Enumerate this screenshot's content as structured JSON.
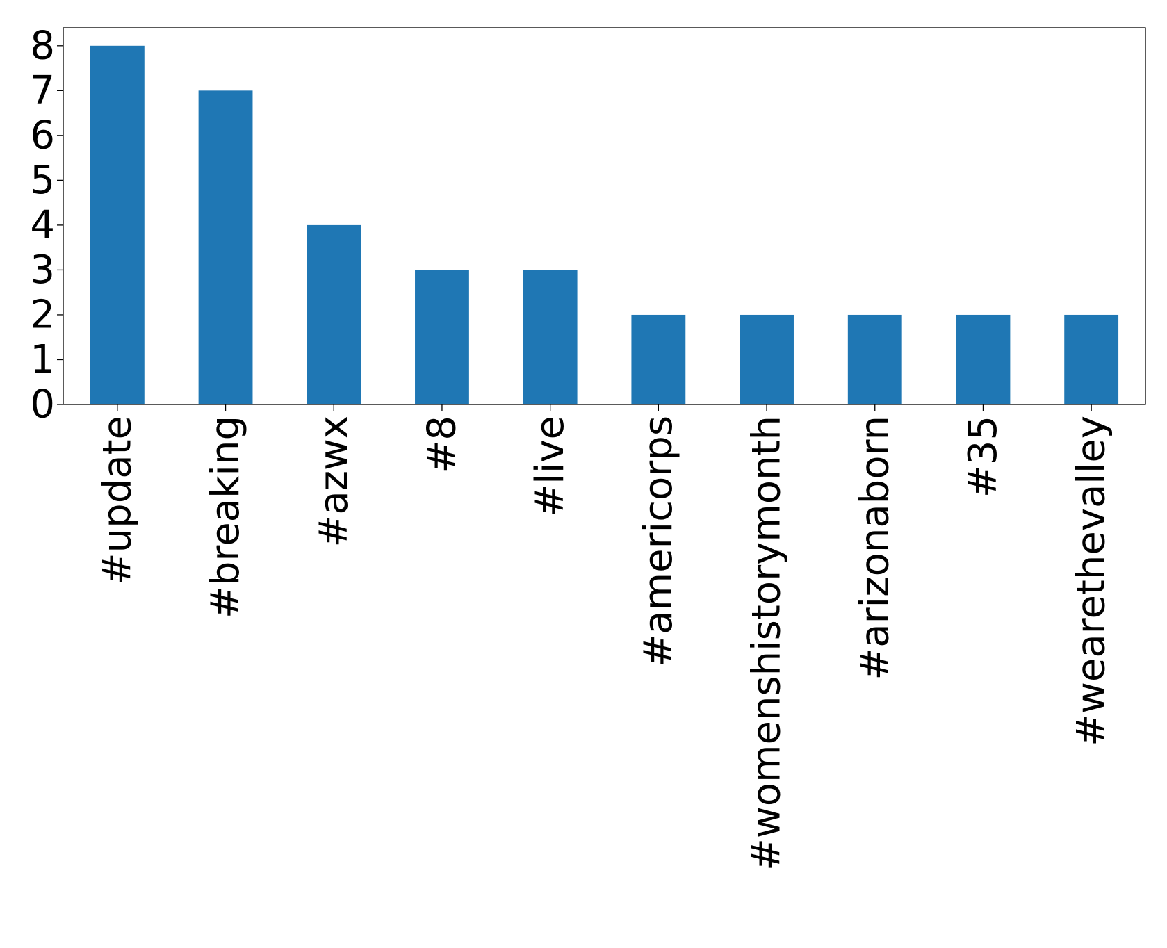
{
  "chart_data": {
    "type": "bar",
    "title": "",
    "xlabel": "",
    "ylabel": "",
    "categories": [
      "#update",
      "#breaking",
      "#azwx",
      "#8",
      "#live",
      "#americorps",
      "#womenshistorymonth",
      "#arizonaborn",
      "#35",
      "#wearethevalley"
    ],
    "values": [
      8,
      7,
      4,
      3,
      3,
      2,
      2,
      2,
      2,
      2
    ],
    "ylim": [
      0,
      8.4
    ],
    "yticks": [
      "0",
      "1",
      "2",
      "3",
      "4",
      "5",
      "6",
      "7",
      "8"
    ],
    "bar_color": "#1f77b4",
    "grid": false,
    "legend": "none"
  }
}
